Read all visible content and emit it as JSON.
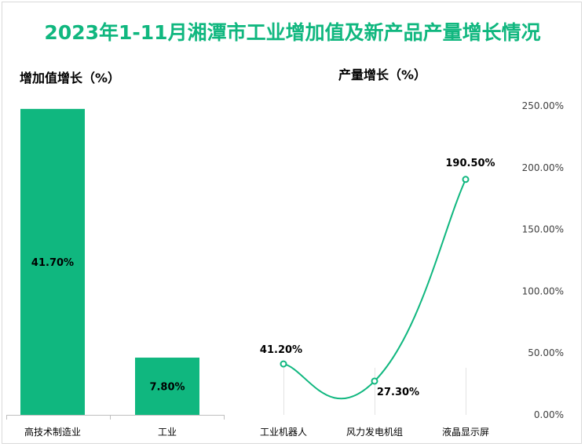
{
  "title": "2023年1-11月湘潭市工业增加值及新产品产量增长情况",
  "colors": {
    "accent": "#10b77f",
    "text": "#000000",
    "axis": "#595959",
    "grid": "#e6e6e6"
  },
  "chart_data": [
    {
      "type": "bar",
      "title": "增加值增长（%）",
      "categories": [
        "高技术制造业",
        "工业"
      ],
      "values": [
        41.7,
        7.8
      ],
      "value_labels": [
        "41.70%",
        "7.80%"
      ],
      "ylim": [
        0,
        45
      ],
      "grid": false,
      "legend": "none"
    },
    {
      "type": "line",
      "title": "产量增长（%）",
      "categories": [
        "工业机器人",
        "风力发电机组",
        "液晶显示屏"
      ],
      "values": [
        41.2,
        27.3,
        190.5
      ],
      "value_labels": [
        "41.20%",
        "27.30%",
        "190.50%"
      ],
      "ylim": [
        0,
        250
      ],
      "yticks": [
        "0.00%",
        "50.00%",
        "100.00%",
        "150.00%",
        "200.00%",
        "250.00%"
      ],
      "y_axis_position": "right",
      "smooth": true,
      "grid": false,
      "legend": "none"
    }
  ]
}
